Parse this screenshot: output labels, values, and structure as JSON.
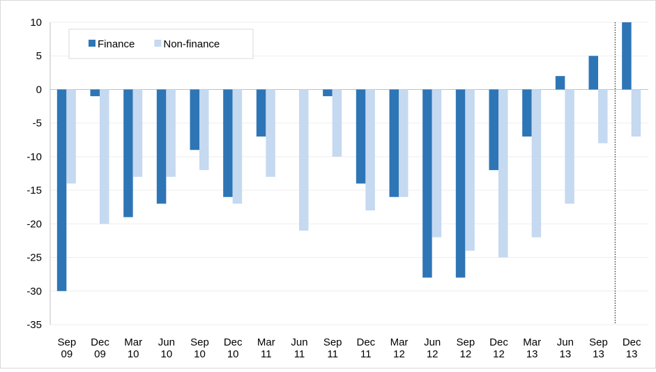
{
  "chart_data": {
    "type": "bar",
    "categories": [
      "Sep 09",
      "Dec 09",
      "Mar 10",
      "Jun 10",
      "Sep 10",
      "Dec 10",
      "Mar 11",
      "Jun 11",
      "Sep 11",
      "Dec 11",
      "Mar 12",
      "Jun 12",
      "Sep 12",
      "Dec 12",
      "Mar 13",
      "Jun 13",
      "Sep 13",
      "Dec 13"
    ],
    "series": [
      {
        "name": "Finance",
        "color": "#2e75b6",
        "values": [
          -30,
          -1,
          -19,
          -17,
          -9,
          -16,
          -7,
          0,
          -1,
          -14,
          -16,
          -28,
          -28,
          -12,
          -7,
          2,
          5,
          10
        ]
      },
      {
        "name": "Non-finance",
        "color": "#c5d9f0",
        "values": [
          -14,
          -20,
          -13,
          -13,
          -12,
          -17,
          -13,
          -21,
          -10,
          -18,
          -16,
          -22,
          -24,
          -25,
          -22,
          -17,
          -8,
          -7
        ]
      }
    ],
    "ylim": [
      -35,
      10
    ],
    "yticks": [
      -35,
      -30,
      -25,
      -20,
      -15,
      -10,
      -5,
      0,
      5,
      10
    ],
    "grid": true,
    "legend": "top-left"
  }
}
